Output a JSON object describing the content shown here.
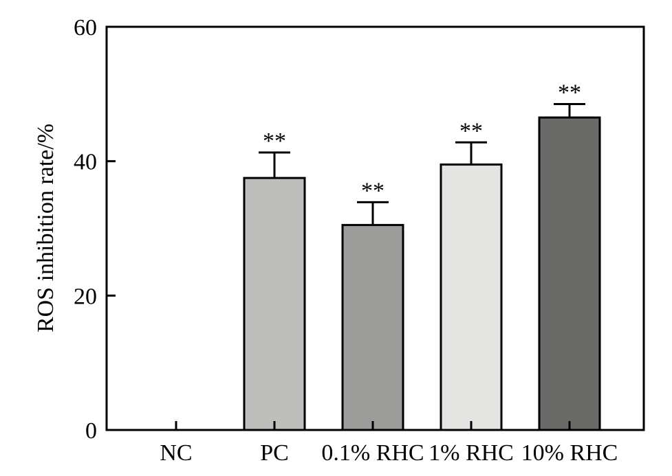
{
  "chart_data": {
    "type": "bar",
    "title": "",
    "xlabel": "",
    "ylabel": "ROS inhibition rate/%",
    "ylim": [
      0,
      60
    ],
    "yticks": [
      0,
      20,
      40,
      60
    ],
    "grid": false,
    "legend": "none",
    "categories": [
      "NC",
      "PC",
      "0.1% RHC",
      "1% RHC",
      "10% RHC"
    ],
    "values": [
      0,
      37.5,
      30.5,
      39.5,
      46.5
    ],
    "error_upper": [
      0,
      3.8,
      3.4,
      3.3,
      2.0
    ],
    "significance": [
      "",
      "**",
      "**",
      "**",
      "**"
    ],
    "bar_colors": [
      "#ffffff",
      "#bebfbd",
      "#9c9d9b",
      "#e4e4e3",
      "#6a6a69"
    ]
  }
}
